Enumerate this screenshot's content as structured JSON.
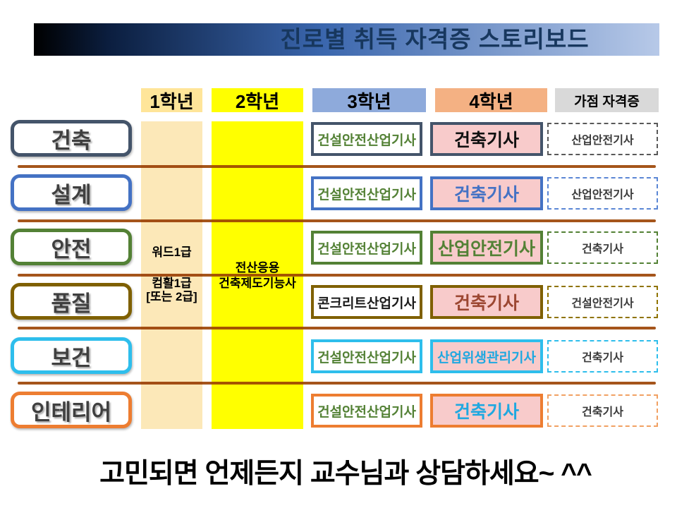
{
  "title": "진로별 취득 자격증 스토리보드",
  "header": {
    "year1": "1학년",
    "year2": "2학년",
    "year3": "3학년",
    "year4": "4학년",
    "bonus": "가점 자격증"
  },
  "notes": {
    "year1_line1": "워드1급",
    "year1_line2": "컴활1급",
    "year1_line3": "[또는 2급]",
    "year2_line1": "전산응용",
    "year2_line2": "건축제도기능사"
  },
  "rows": [
    {
      "label": "건축",
      "color": "#44546A",
      "dash_color": "#595959",
      "year3": {
        "text": "건설안전산업기사",
        "color": "#538135"
      },
      "year4": {
        "text": "건축기사",
        "color": "#111111"
      },
      "bonus": {
        "text": "산업안전기사"
      }
    },
    {
      "label": "설계",
      "color": "#4472C4",
      "dash_color": "#5B87D5",
      "year3": {
        "text": "건설안전산업기사",
        "color": "#538135"
      },
      "year4": {
        "text": "건축기사",
        "color": "#4472C4"
      },
      "bonus": {
        "text": "산업안전기사"
      }
    },
    {
      "label": "안전",
      "color": "#538135",
      "dash_color": "#538135",
      "year3": {
        "text": "건설안전산업기사",
        "color": "#538135"
      },
      "year4": {
        "text": "산업안전기사",
        "color": "#538135"
      },
      "bonus": {
        "text": "건축기사"
      }
    },
    {
      "label": "품질",
      "color": "#7F6000",
      "dash_color": "#8F7300",
      "year3": {
        "text": "콘크리트산업기사",
        "color": "#1a1a1a"
      },
      "year4": {
        "text": "건축기사",
        "color": "#9C4732"
      },
      "bonus": {
        "text": "건설안전기사"
      }
    },
    {
      "label": "보건",
      "color": "#2EBEEC",
      "dash_color": "#2EBEEC",
      "year3": {
        "text": "건설안전산업기사",
        "color": "#538135"
      },
      "year4": {
        "text": "산업위생관리기사",
        "color": "#1FA8E0"
      },
      "bonus": {
        "text": "건축기사"
      }
    },
    {
      "label": "인테리어",
      "color": "#ED7D31",
      "dash_color": "#F1A163",
      "year3": {
        "text": "건설안전산업기사",
        "color": "#538135"
      },
      "year4": {
        "text": "건축기사",
        "color": "#1FA8E0"
      },
      "bonus": {
        "text": "건축기사"
      }
    }
  ],
  "footer": "고민되면 언제든지 교수님과 상담하세요~ ^^",
  "colors": {
    "title_text": "#17375E",
    "title_gradient_start": "#000000",
    "title_gradient_mid": "#3a66ad",
    "title_gradient_end": "#B7C9E8",
    "header_year1_bg": "#FFE599",
    "header_year2_bg": "#FFFF00",
    "header_year3_bg": "#8EAADB",
    "header_year4_bg": "#F4B183",
    "header_bonus_bg": "#D9D9D9",
    "band_year1_bg": "#FCE8B8",
    "band_year2_bg": "#FFFF00",
    "cert_highlight_bg": "#F8CBCB",
    "divider": "#A5551B"
  }
}
